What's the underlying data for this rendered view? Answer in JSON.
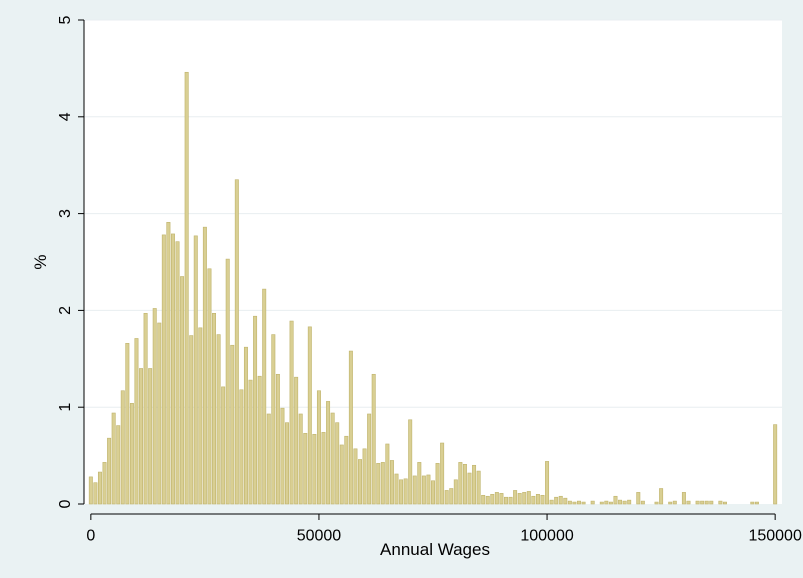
{
  "chart_data": {
    "type": "bar",
    "title": "",
    "xlabel": "Annual Wages",
    "ylabel": "%",
    "xlim": [
      -1500,
      151500
    ],
    "ylim": [
      0,
      5
    ],
    "xticks": [
      0,
      50000,
      100000,
      150000
    ],
    "xtick_labels": [
      "0",
      "50000",
      "100000",
      "150000"
    ],
    "yticks": [
      0,
      1,
      2,
      3,
      4,
      5
    ],
    "ytick_labels": [
      "0",
      "1",
      "2",
      "3",
      "4",
      "5"
    ],
    "grid": "horizontal",
    "legend": "none",
    "bin_width": 1000,
    "bins": [
      {
        "x": 0,
        "y": 0.28
      },
      {
        "x": 1000,
        "y": 0.22
      },
      {
        "x": 2000,
        "y": 0.33
      },
      {
        "x": 3000,
        "y": 0.43
      },
      {
        "x": 4000,
        "y": 0.68
      },
      {
        "x": 5000,
        "y": 0.94
      },
      {
        "x": 6000,
        "y": 0.81
      },
      {
        "x": 7000,
        "y": 1.17
      },
      {
        "x": 8000,
        "y": 1.66
      },
      {
        "x": 9000,
        "y": 1.04
      },
      {
        "x": 10000,
        "y": 1.71
      },
      {
        "x": 11000,
        "y": 1.4
      },
      {
        "x": 12000,
        "y": 1.97
      },
      {
        "x": 13000,
        "y": 1.4
      },
      {
        "x": 14000,
        "y": 2.02
      },
      {
        "x": 15000,
        "y": 1.87
      },
      {
        "x": 16000,
        "y": 2.78
      },
      {
        "x": 17000,
        "y": 2.91
      },
      {
        "x": 18000,
        "y": 2.79
      },
      {
        "x": 19000,
        "y": 2.71
      },
      {
        "x": 20000,
        "y": 2.35
      },
      {
        "x": 21000,
        "y": 4.46
      },
      {
        "x": 22000,
        "y": 1.74
      },
      {
        "x": 23000,
        "y": 2.77
      },
      {
        "x": 24000,
        "y": 1.82
      },
      {
        "x": 25000,
        "y": 2.86
      },
      {
        "x": 26000,
        "y": 2.43
      },
      {
        "x": 27000,
        "y": 1.97
      },
      {
        "x": 28000,
        "y": 1.75
      },
      {
        "x": 29000,
        "y": 1.21
      },
      {
        "x": 30000,
        "y": 2.53
      },
      {
        "x": 31000,
        "y": 1.64
      },
      {
        "x": 32000,
        "y": 3.35
      },
      {
        "x": 33000,
        "y": 1.18
      },
      {
        "x": 34000,
        "y": 1.62
      },
      {
        "x": 35000,
        "y": 1.28
      },
      {
        "x": 36000,
        "y": 1.94
      },
      {
        "x": 37000,
        "y": 1.32
      },
      {
        "x": 38000,
        "y": 2.22
      },
      {
        "x": 39000,
        "y": 0.93
      },
      {
        "x": 40000,
        "y": 1.75
      },
      {
        "x": 41000,
        "y": 1.34
      },
      {
        "x": 42000,
        "y": 0.99
      },
      {
        "x": 43000,
        "y": 0.84
      },
      {
        "x": 44000,
        "y": 1.89
      },
      {
        "x": 45000,
        "y": 1.31
      },
      {
        "x": 46000,
        "y": 0.93
      },
      {
        "x": 47000,
        "y": 0.73
      },
      {
        "x": 48000,
        "y": 1.83
      },
      {
        "x": 49000,
        "y": 0.72
      },
      {
        "x": 50000,
        "y": 1.17
      },
      {
        "x": 51000,
        "y": 0.74
      },
      {
        "x": 52000,
        "y": 1.06
      },
      {
        "x": 53000,
        "y": 0.94
      },
      {
        "x": 54000,
        "y": 0.84
      },
      {
        "x": 55000,
        "y": 0.61
      },
      {
        "x": 56000,
        "y": 0.7
      },
      {
        "x": 57000,
        "y": 1.58
      },
      {
        "x": 58000,
        "y": 0.57
      },
      {
        "x": 59000,
        "y": 0.46
      },
      {
        "x": 60000,
        "y": 0.57
      },
      {
        "x": 61000,
        "y": 0.93
      },
      {
        "x": 62000,
        "y": 1.34
      },
      {
        "x": 63000,
        "y": 0.42
      },
      {
        "x": 64000,
        "y": 0.43
      },
      {
        "x": 65000,
        "y": 0.62
      },
      {
        "x": 66000,
        "y": 0.45
      },
      {
        "x": 67000,
        "y": 0.31
      },
      {
        "x": 68000,
        "y": 0.25
      },
      {
        "x": 69000,
        "y": 0.26
      },
      {
        "x": 70000,
        "y": 0.87
      },
      {
        "x": 71000,
        "y": 0.29
      },
      {
        "x": 72000,
        "y": 0.43
      },
      {
        "x": 73000,
        "y": 0.29
      },
      {
        "x": 74000,
        "y": 0.3
      },
      {
        "x": 75000,
        "y": 0.24
      },
      {
        "x": 76000,
        "y": 0.42
      },
      {
        "x": 77000,
        "y": 0.63
      },
      {
        "x": 78000,
        "y": 0.14
      },
      {
        "x": 79000,
        "y": 0.16
      },
      {
        "x": 80000,
        "y": 0.25
      },
      {
        "x": 81000,
        "y": 0.43
      },
      {
        "x": 82000,
        "y": 0.41
      },
      {
        "x": 83000,
        "y": 0.32
      },
      {
        "x": 84000,
        "y": 0.4
      },
      {
        "x": 85000,
        "y": 0.34
      },
      {
        "x": 86000,
        "y": 0.09
      },
      {
        "x": 87000,
        "y": 0.08
      },
      {
        "x": 88000,
        "y": 0.1
      },
      {
        "x": 89000,
        "y": 0.12
      },
      {
        "x": 90000,
        "y": 0.11
      },
      {
        "x": 91000,
        "y": 0.07
      },
      {
        "x": 92000,
        "y": 0.07
      },
      {
        "x": 93000,
        "y": 0.14
      },
      {
        "x": 94000,
        "y": 0.11
      },
      {
        "x": 95000,
        "y": 0.12
      },
      {
        "x": 96000,
        "y": 0.13
      },
      {
        "x": 97000,
        "y": 0.08
      },
      {
        "x": 98000,
        "y": 0.1
      },
      {
        "x": 99000,
        "y": 0.09
      },
      {
        "x": 100000,
        "y": 0.44
      },
      {
        "x": 101000,
        "y": 0.04
      },
      {
        "x": 102000,
        "y": 0.07
      },
      {
        "x": 103000,
        "y": 0.08
      },
      {
        "x": 104000,
        "y": 0.06
      },
      {
        "x": 105000,
        "y": 0.03
      },
      {
        "x": 106000,
        "y": 0.02
      },
      {
        "x": 107000,
        "y": 0.03
      },
      {
        "x": 108000,
        "y": 0.02
      },
      {
        "x": 110000,
        "y": 0.03
      },
      {
        "x": 112000,
        "y": 0.02
      },
      {
        "x": 113000,
        "y": 0.03
      },
      {
        "x": 114000,
        "y": 0.02
      },
      {
        "x": 115000,
        "y": 0.08
      },
      {
        "x": 116000,
        "y": 0.04
      },
      {
        "x": 117000,
        "y": 0.03
      },
      {
        "x": 118000,
        "y": 0.04
      },
      {
        "x": 120000,
        "y": 0.12
      },
      {
        "x": 121000,
        "y": 0.03
      },
      {
        "x": 124000,
        "y": 0.02
      },
      {
        "x": 125000,
        "y": 0.16
      },
      {
        "x": 127000,
        "y": 0.02
      },
      {
        "x": 128000,
        "y": 0.03
      },
      {
        "x": 130000,
        "y": 0.12
      },
      {
        "x": 131000,
        "y": 0.03
      },
      {
        "x": 133000,
        "y": 0.03
      },
      {
        "x": 134000,
        "y": 0.03
      },
      {
        "x": 135000,
        "y": 0.03
      },
      {
        "x": 136000,
        "y": 0.03
      },
      {
        "x": 138000,
        "y": 0.03
      },
      {
        "x": 139000,
        "y": 0.02
      },
      {
        "x": 145000,
        "y": 0.02
      },
      {
        "x": 146000,
        "y": 0.02
      },
      {
        "x": 150000,
        "y": 0.82
      }
    ]
  },
  "colors": {
    "outer_background": "#eaf2f3",
    "plot_background": "#ffffff",
    "bar_fill": "#d9cf93",
    "bar_stroke": "#bfb36b",
    "grid": "#e8eef0",
    "axis": "#000000"
  }
}
